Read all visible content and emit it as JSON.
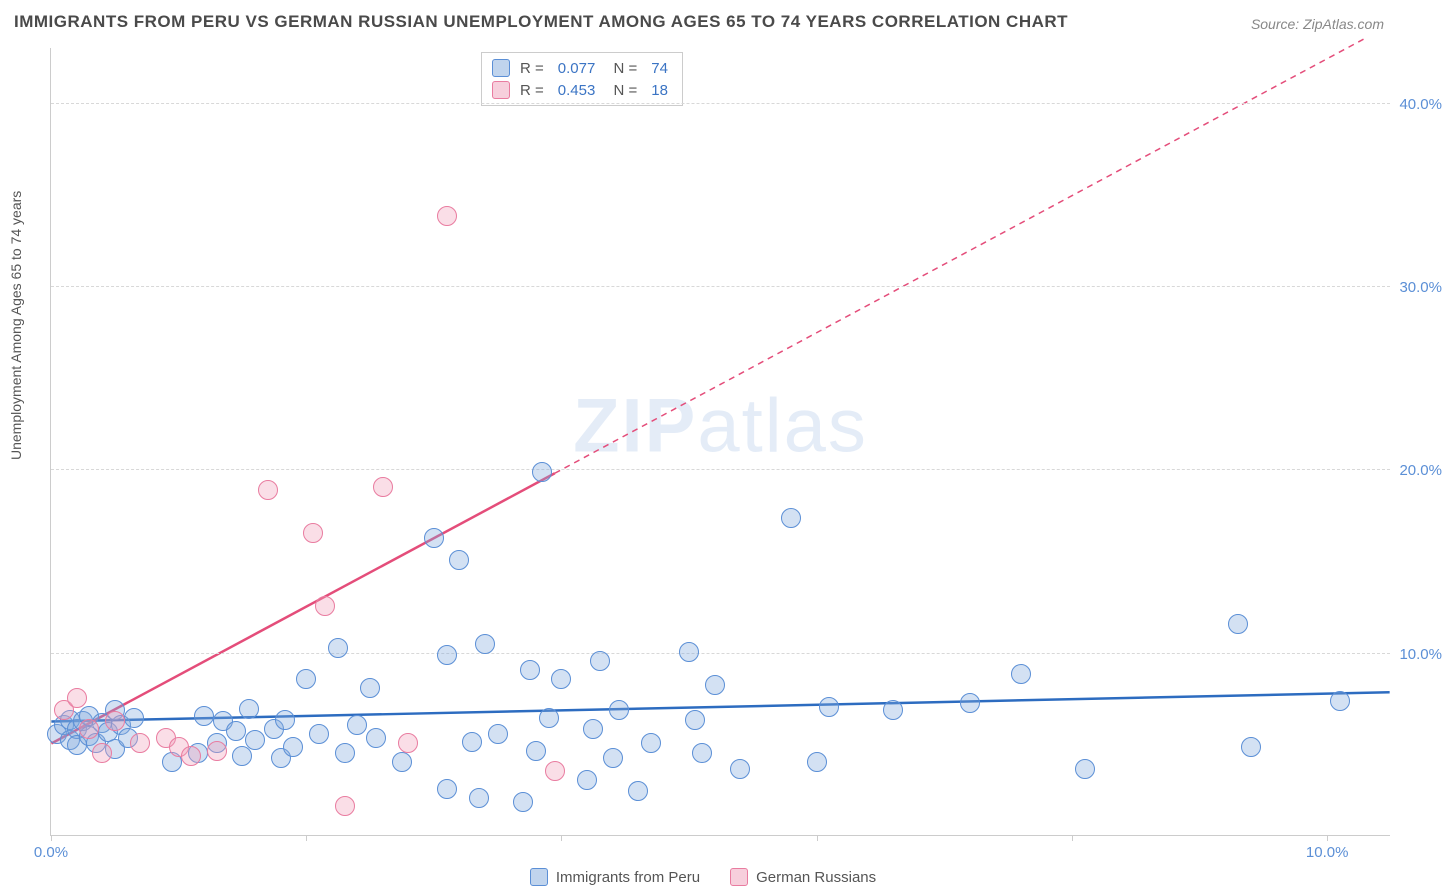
{
  "title": "IMMIGRANTS FROM PERU VS GERMAN RUSSIAN UNEMPLOYMENT AMONG AGES 65 TO 74 YEARS CORRELATION CHART",
  "source": "Source: ZipAtlas.com",
  "ylabel": "Unemployment Among Ages 65 to 74 years",
  "watermark_left": "ZIP",
  "watermark_right": "atlas",
  "chart": {
    "type": "scatter",
    "xlim": [
      0,
      10.5
    ],
    "ylim": [
      0,
      43
    ],
    "x_ticks": [
      0,
      2,
      4,
      6,
      8,
      10
    ],
    "x_tick_labels": {
      "0": "0.0%",
      "10": "10.0%"
    },
    "y_ticks": [
      10,
      20,
      30,
      40
    ],
    "y_tick_labels": {
      "10": "10.0%",
      "20": "20.0%",
      "30": "30.0%",
      "40": "40.0%"
    },
    "background_color": "#ffffff",
    "grid_color": "#d8d8d8",
    "axis_color": "#cccccc",
    "marker_radius": 10,
    "series": [
      {
        "name": "Immigrants from Peru",
        "color_fill": "rgba(130,170,220,0.35)",
        "color_stroke": "#5b8fd6",
        "trend_color": "#2d6cc0",
        "trend_width": 2.5,
        "trend_dash": "none",
        "R": "0.077",
        "N": "74",
        "trend": {
          "x1": 0,
          "y1": 6.2,
          "x2": 10.5,
          "y2": 7.8
        },
        "points": [
          [
            0.05,
            5.5
          ],
          [
            0.1,
            6.0
          ],
          [
            0.15,
            5.2
          ],
          [
            0.15,
            6.3
          ],
          [
            0.2,
            5.8
          ],
          [
            0.2,
            4.9
          ],
          [
            0.25,
            6.2
          ],
          [
            0.3,
            5.4
          ],
          [
            0.3,
            6.5
          ],
          [
            0.35,
            5.0
          ],
          [
            0.4,
            6.1
          ],
          [
            0.45,
            5.6
          ],
          [
            0.5,
            6.8
          ],
          [
            0.5,
            4.7
          ],
          [
            0.55,
            6.0
          ],
          [
            0.6,
            5.3
          ],
          [
            0.65,
            6.4
          ],
          [
            0.95,
            4.0
          ],
          [
            1.15,
            4.5
          ],
          [
            1.2,
            6.5
          ],
          [
            1.3,
            5.0
          ],
          [
            1.35,
            6.2
          ],
          [
            1.45,
            5.7
          ],
          [
            1.5,
            4.3
          ],
          [
            1.55,
            6.9
          ],
          [
            1.6,
            5.2
          ],
          [
            1.75,
            5.8
          ],
          [
            1.8,
            4.2
          ],
          [
            1.83,
            6.3
          ],
          [
            1.9,
            4.8
          ],
          [
            2.0,
            8.5
          ],
          [
            2.1,
            5.5
          ],
          [
            2.25,
            10.2
          ],
          [
            2.3,
            4.5
          ],
          [
            2.4,
            6.0
          ],
          [
            2.5,
            8.0
          ],
          [
            2.55,
            5.3
          ],
          [
            2.75,
            4.0
          ],
          [
            3.0,
            16.2
          ],
          [
            3.1,
            9.8
          ],
          [
            3.1,
            2.5
          ],
          [
            3.2,
            15.0
          ],
          [
            3.3,
            5.1
          ],
          [
            3.35,
            2.0
          ],
          [
            3.4,
            10.4
          ],
          [
            3.5,
            5.5
          ],
          [
            3.7,
            1.8
          ],
          [
            3.75,
            9.0
          ],
          [
            3.8,
            4.6
          ],
          [
            3.85,
            19.8
          ],
          [
            3.9,
            6.4
          ],
          [
            4.0,
            8.5
          ],
          [
            4.2,
            3.0
          ],
          [
            4.25,
            5.8
          ],
          [
            4.3,
            9.5
          ],
          [
            4.4,
            4.2
          ],
          [
            4.45,
            6.8
          ],
          [
            4.6,
            2.4
          ],
          [
            4.7,
            5.0
          ],
          [
            5.0,
            10.0
          ],
          [
            5.05,
            6.3
          ],
          [
            5.1,
            4.5
          ],
          [
            5.2,
            8.2
          ],
          [
            5.4,
            3.6
          ],
          [
            5.8,
            17.3
          ],
          [
            6.0,
            4.0
          ],
          [
            6.1,
            7.0
          ],
          [
            6.6,
            6.8
          ],
          [
            7.2,
            7.2
          ],
          [
            7.6,
            8.8
          ],
          [
            8.1,
            3.6
          ],
          [
            9.3,
            11.5
          ],
          [
            9.4,
            4.8
          ],
          [
            10.1,
            7.3
          ]
        ]
      },
      {
        "name": "German Russians",
        "color_fill": "rgba(240,160,185,0.35)",
        "color_stroke": "#e97ca0",
        "trend_color": "#e44d7a",
        "trend_width": 2.5,
        "trend_dash": "6,5",
        "R": "0.453",
        "N": "18",
        "trend": {
          "x1": 0,
          "y1": 5.0,
          "x2": 10.3,
          "y2": 43.5
        },
        "trend_solid_end_x": 3.95,
        "points": [
          [
            0.1,
            6.8
          ],
          [
            0.2,
            7.5
          ],
          [
            0.3,
            5.8
          ],
          [
            0.4,
            4.5
          ],
          [
            0.5,
            6.2
          ],
          [
            0.7,
            5.0
          ],
          [
            0.9,
            5.3
          ],
          [
            1.0,
            4.8
          ],
          [
            1.1,
            4.3
          ],
          [
            1.3,
            4.6
          ],
          [
            1.7,
            18.8
          ],
          [
            2.05,
            16.5
          ],
          [
            2.15,
            12.5
          ],
          [
            2.3,
            1.6
          ],
          [
            2.6,
            19.0
          ],
          [
            2.8,
            5.0
          ],
          [
            3.1,
            33.8
          ],
          [
            3.95,
            3.5
          ]
        ]
      }
    ]
  },
  "legend": {
    "series1": "Immigrants from Peru",
    "series2": "German Russians"
  }
}
